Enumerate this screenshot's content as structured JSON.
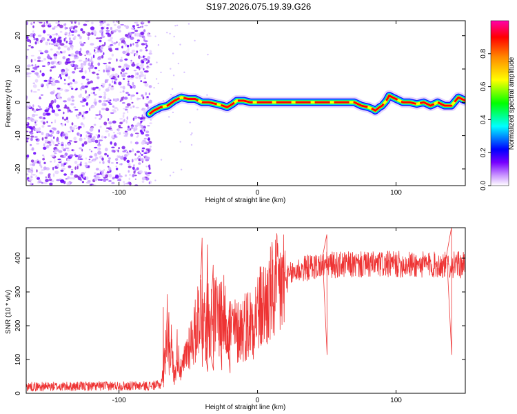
{
  "title": "S197.2026.075.19.39.G26",
  "chart_data": [
    {
      "type": "heatmap",
      "name": "spectrogram",
      "xlabel": "Height of straight line (km)",
      "ylabel": "Frequency (Hz)",
      "xlim": [
        -167,
        150
      ],
      "ylim": [
        -25,
        24.5
      ],
      "xticks": [
        -100,
        0,
        100
      ],
      "yticks": [
        20,
        10,
        0,
        -10,
        -20
      ],
      "noise_region_x": [
        -167,
        -77
      ],
      "signal_start_x": -78,
      "ridge": {
        "x": [
          -78,
          -75,
          -70,
          -65,
          -60,
          -55,
          -50,
          -45,
          -40,
          -35,
          -30,
          -25,
          -22,
          -18,
          -15,
          -10,
          -5,
          0,
          20,
          40,
          60,
          70,
          75,
          80,
          83,
          85,
          88,
          90,
          93,
          95,
          100,
          105,
          110,
          115,
          120,
          125,
          130,
          135,
          140,
          145,
          150
        ],
        "freq": [
          -3.5,
          -2.5,
          -1.5,
          -1,
          0.5,
          1.5,
          1,
          1,
          0,
          0,
          -0.5,
          -1,
          -1.5,
          -0.5,
          0.5,
          0.5,
          0,
          0,
          0,
          0,
          0,
          0,
          -1,
          -1.5,
          -2,
          -2.5,
          -1.5,
          -1,
          0.5,
          2,
          1,
          0,
          0,
          -0.5,
          0,
          -1,
          0,
          -1,
          -1,
          1.5,
          0.5
        ]
      },
      "colorbar": {
        "label": "Normalized spectral amplitude",
        "range": [
          0,
          1
        ],
        "ticks": [
          "0.0",
          "0.2",
          "0.4",
          "0.6",
          "0.8"
        ],
        "tick_values": [
          0,
          0.2,
          0.4,
          0.6,
          0.8
        ],
        "colors": [
          "#ffffff",
          "#cc99ff",
          "#7700ff",
          "#0000ff",
          "#00ffff",
          "#00ff00",
          "#ffff00",
          "#ff8800",
          "#ff0000",
          "#ff00aa"
        ]
      }
    },
    {
      "type": "line",
      "name": "snr",
      "xlabel": "Height of straight line (km)",
      "ylabel": "SNR (10 * v/v)",
      "xlim": [
        -167,
        150
      ],
      "ylim": [
        0,
        490
      ],
      "xticks": [
        -100,
        0,
        100
      ],
      "yticks": [
        0,
        100,
        200,
        300,
        400
      ],
      "color": "#ee3333",
      "envelope": {
        "x": [
          -167,
          -140,
          -100,
          -80,
          -70,
          -68,
          -65,
          -62,
          -60,
          -58,
          -55,
          -50,
          -45,
          -42,
          -40,
          -38,
          -35,
          -30,
          -25,
          -20,
          -15,
          -10,
          -5,
          0,
          5,
          10,
          15,
          20,
          25,
          30,
          40,
          50,
          60,
          80,
          100,
          120,
          150
        ],
        "y": [
          20,
          20,
          22,
          22,
          25,
          60,
          200,
          130,
          40,
          130,
          60,
          140,
          180,
          250,
          260,
          200,
          220,
          230,
          230,
          200,
          180,
          200,
          210,
          240,
          260,
          290,
          310,
          330,
          355,
          365,
          375,
          380,
          380,
          380,
          382,
          380,
          380
        ]
      },
      "spikes": [
        {
          "x": -68,
          "y": 255
        },
        {
          "x": -64,
          "y": 240
        },
        {
          "x": -40,
          "y": 460
        },
        {
          "x": -36,
          "y": 440
        },
        {
          "x": -32,
          "y": 380
        },
        {
          "x": -26,
          "y": 330
        },
        {
          "x": -20,
          "y": 270
        },
        {
          "x": 50,
          "y": 470
        },
        {
          "x": 140,
          "y": 490
        }
      ]
    }
  ]
}
